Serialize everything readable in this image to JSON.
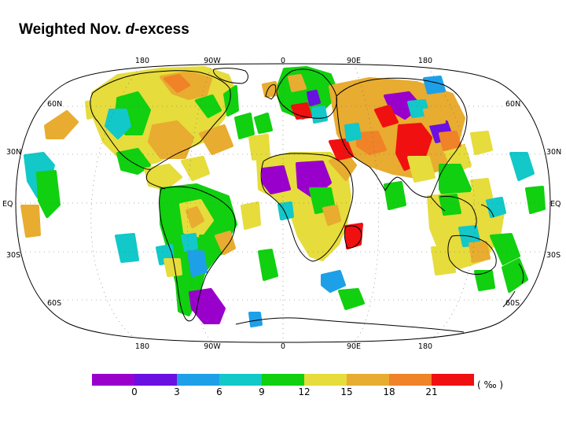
{
  "title": {
    "prefix": "Weighted Nov. ",
    "italic": "d",
    "suffix": "-excess"
  },
  "map": {
    "projection": "Robinson",
    "coastlines": true,
    "graticule": "dotted",
    "lon_labels": [
      "180",
      "90W",
      "0",
      "90E",
      "180"
    ],
    "lat_labels_left": [
      "60N",
      "30N",
      "EQ",
      "30S",
      "60S"
    ],
    "lat_labels_right": [
      "60N",
      "30N",
      "EQ",
      "30S",
      "60S"
    ]
  },
  "colorbar": {
    "units": "( ‰ )",
    "tick_labels": [
      "0",
      "3",
      "6",
      "9",
      "12",
      "15",
      "18",
      "21"
    ],
    "colors": [
      "#9a00cc",
      "#6a10e0",
      "#1ea0e8",
      "#12c8c8",
      "#10d010",
      "#e6dc3c",
      "#e8ac30",
      "#f08228",
      "#f01010"
    ]
  }
}
